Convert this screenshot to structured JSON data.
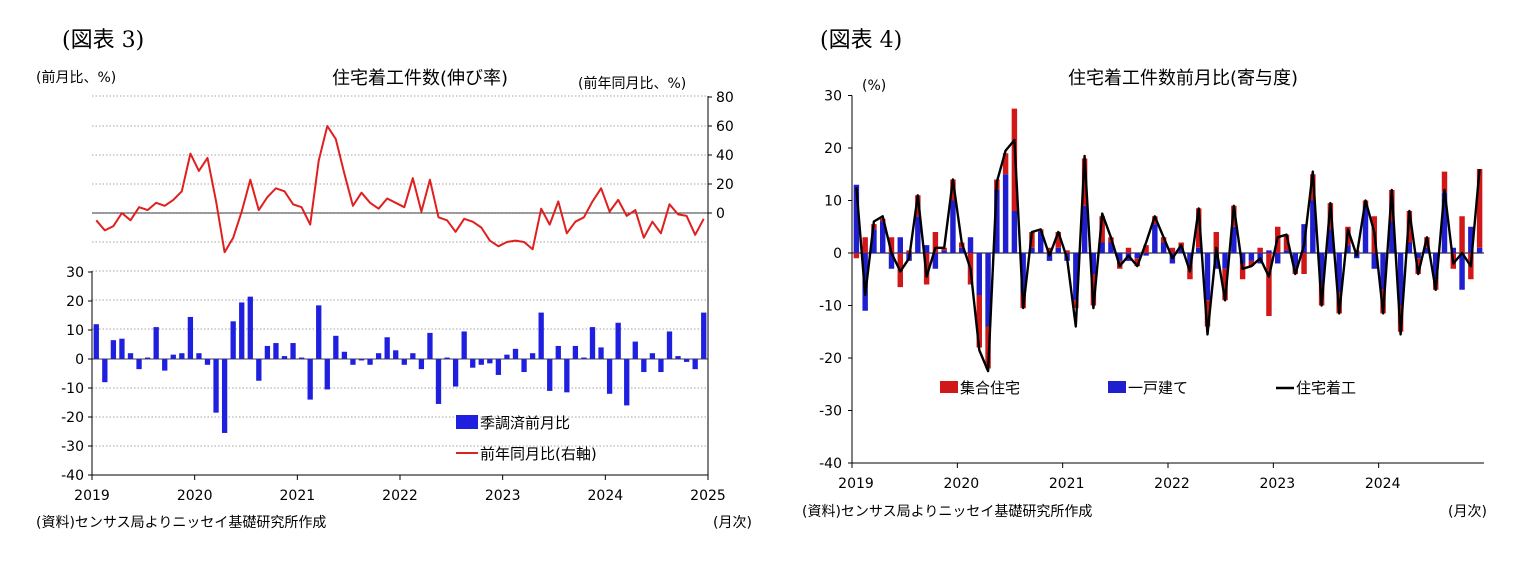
{
  "figure3": {
    "label": "(図表 3)",
    "title": "住宅着工件数(伸び率)",
    "left_unit": "(前月比、%)",
    "right_unit": "(前年同月比、%)",
    "x_unit": "(月次)",
    "source": "(資料)センサス局よりニッセイ基礎研究所作成",
    "legend": {
      "bar": "季調済前月比",
      "line": "前年同月比(右軸)"
    },
    "colors": {
      "bar": "#1f1fe0",
      "line": "#e01f1f"
    }
  },
  "figure4": {
    "label": "(図表 4)",
    "title": "住宅着工件数前月比(寄与度)",
    "y_unit": "(%)",
    "x_unit": "(月次)",
    "source": "(資料)センサス局よりニッセイ基礎研究所作成",
    "legend": {
      "multi": "集合住宅",
      "single": "一戸建て",
      "total": "住宅着工"
    },
    "colors": {
      "multi": "#d01818",
      "single": "#1f1fd0",
      "total": "#000000"
    }
  },
  "chart_data": [
    {
      "type": "bar",
      "title": "住宅着工件数(伸び率)",
      "xlabel": "(月次)",
      "ylabel": "(前月比、%)",
      "x_ticks": [
        "2019",
        "2020",
        "2021",
        "2022",
        "2023",
        "2024",
        "2025"
      ],
      "start": "2019-01",
      "ylim": [
        -40,
        30
      ],
      "y_ticks": [
        -40,
        -30,
        -20,
        -10,
        0,
        10,
        20,
        30
      ],
      "y2label": "(前年同月比、%)",
      "y2lim": [
        -80,
        80
      ],
      "y2_ticks": [
        0,
        20,
        40,
        60,
        80
      ],
      "grid": true,
      "legend_position": "bottom-right",
      "series": [
        {
          "name": "季調済前月比",
          "type": "bar",
          "axis": "left",
          "values": [
            12,
            -8,
            6.5,
            7,
            2,
            -3.5,
            0.5,
            11,
            -4,
            1.5,
            2,
            14.5,
            2,
            -2,
            -18.5,
            -25.5,
            13,
            19.5,
            21.5,
            -7.5,
            4.5,
            5.5,
            1,
            5.5,
            0.5,
            -14,
            18.5,
            -10.5,
            8,
            2.5,
            -2,
            -0.5,
            -2,
            2,
            7.5,
            3,
            -2,
            2,
            -3.5,
            9,
            -15.5,
            0.5,
            -9.5,
            9.5,
            -3,
            -2,
            -1.5,
            -5.5,
            1.5,
            3.5,
            -4.5,
            2,
            16,
            -11,
            4.5,
            -11.5,
            4.5,
            0.5,
            11,
            4,
            -12,
            12.5,
            -16,
            6,
            -4.5,
            2,
            -4.5,
            9.5,
            1,
            -1,
            -3.5,
            16
          ]
        },
        {
          "name": "前年同月比(右軸)",
          "type": "line",
          "axis": "right",
          "values": [
            -5,
            -12,
            -9,
            0,
            -5,
            4,
            2,
            7,
            5,
            9,
            15,
            41,
            29,
            38,
            8,
            -27,
            -17,
            1,
            23,
            2,
            11,
            17,
            15,
            6,
            4,
            -8,
            36,
            60,
            51,
            27,
            5,
            14,
            7,
            3,
            10,
            7,
            4,
            24,
            1,
            23,
            -3,
            -5,
            -13,
            -4,
            -6,
            -10,
            -19,
            -23,
            -20,
            -19,
            -20,
            -25,
            3,
            -8,
            8,
            -14,
            -6,
            -3,
            8,
            17,
            1,
            9,
            -2,
            2,
            -17,
            -6,
            -14,
            6,
            -1,
            -2,
            -15,
            -4
          ]
        }
      ]
    },
    {
      "type": "bar",
      "title": "住宅着工件数前月比(寄与度)",
      "xlabel": "(月次)",
      "ylabel": "(%)",
      "x_ticks": [
        "2019",
        "2020",
        "2021",
        "2022",
        "2023",
        "2024"
      ],
      "start": "2019-01",
      "ylim": [
        -40,
        30
      ],
      "y_ticks": [
        -40,
        -30,
        -20,
        -10,
        0,
        10,
        20,
        30
      ],
      "grid": false,
      "stacked": true,
      "legend_position": "bottom",
      "series": [
        {
          "name": "集合住宅",
          "type": "bar",
          "values": [
            -1,
            3,
            1,
            0.5,
            3,
            -6.5,
            0.5,
            4,
            -6,
            4,
            0.5,
            4,
            1,
            -6,
            -10,
            -8,
            2,
            4,
            19.5,
            -3,
            3,
            0.5,
            1,
            3,
            0.5,
            -1.5,
            9,
            -6,
            5,
            1,
            -1.5,
            1,
            -1.5,
            1.5,
            1.5,
            1,
            1,
            1,
            -3,
            7.5,
            -5,
            4,
            -6,
            4,
            -3,
            -1,
            1,
            -12,
            5,
            3,
            -1,
            -4,
            5,
            -4,
            5,
            -4,
            3.5,
            0.5,
            1,
            7,
            -4.5,
            6,
            -5,
            6,
            -3,
            2,
            -2,
            4,
            -3,
            7,
            -5,
            15
          ]
        },
        {
          "name": "一戸建て",
          "type": "bar",
          "values": [
            13,
            -11,
            4.5,
            6,
            -3,
            3,
            -1.5,
            7,
            1.5,
            -3,
            0.5,
            10,
            1,
            3,
            -8,
            -14,
            12,
            15,
            8,
            -7.5,
            1,
            4,
            -1.5,
            1,
            -1.5,
            -9,
            9,
            -4,
            2,
            2,
            -1.5,
            -1.5,
            -1,
            -0.5,
            5.5,
            2,
            -2,
            1,
            -2,
            1,
            -9,
            -3,
            -3,
            5,
            -2,
            -1.5,
            -2,
            0.5,
            -2,
            0.5,
            -3,
            5.5,
            10,
            -6,
            4.5,
            -7.5,
            1.5,
            -1,
            9,
            -3,
            -7,
            6,
            -10,
            2,
            -1,
            1,
            -5,
            11.5,
            1,
            -7,
            5,
            1
          ]
        },
        {
          "name": "住宅着工",
          "type": "line",
          "values": [
            12.5,
            -8,
            6,
            7,
            0,
            -3.5,
            -1,
            11,
            -4.5,
            1,
            1,
            14,
            2,
            -3,
            -18.5,
            -22.5,
            13.5,
            19.5,
            21.5,
            -10.5,
            4,
            4.5,
            -0.5,
            4,
            -1,
            -14,
            18.5,
            -10.5,
            7.5,
            3,
            -2.5,
            -0.5,
            -2.5,
            2,
            7,
            3,
            -1,
            1.5,
            -3.5,
            8.5,
            -15.5,
            1,
            -9,
            9,
            -3,
            -2.5,
            -1,
            -4.5,
            3,
            3.5,
            -4,
            1.5,
            15.5,
            -10,
            9.5,
            -11.5,
            4.5,
            -0.5,
            10,
            4,
            -11.5,
            12,
            -15.5,
            8,
            -4,
            3,
            -7,
            12,
            -2,
            0,
            -2.5,
            16
          ]
        }
      ]
    }
  ]
}
